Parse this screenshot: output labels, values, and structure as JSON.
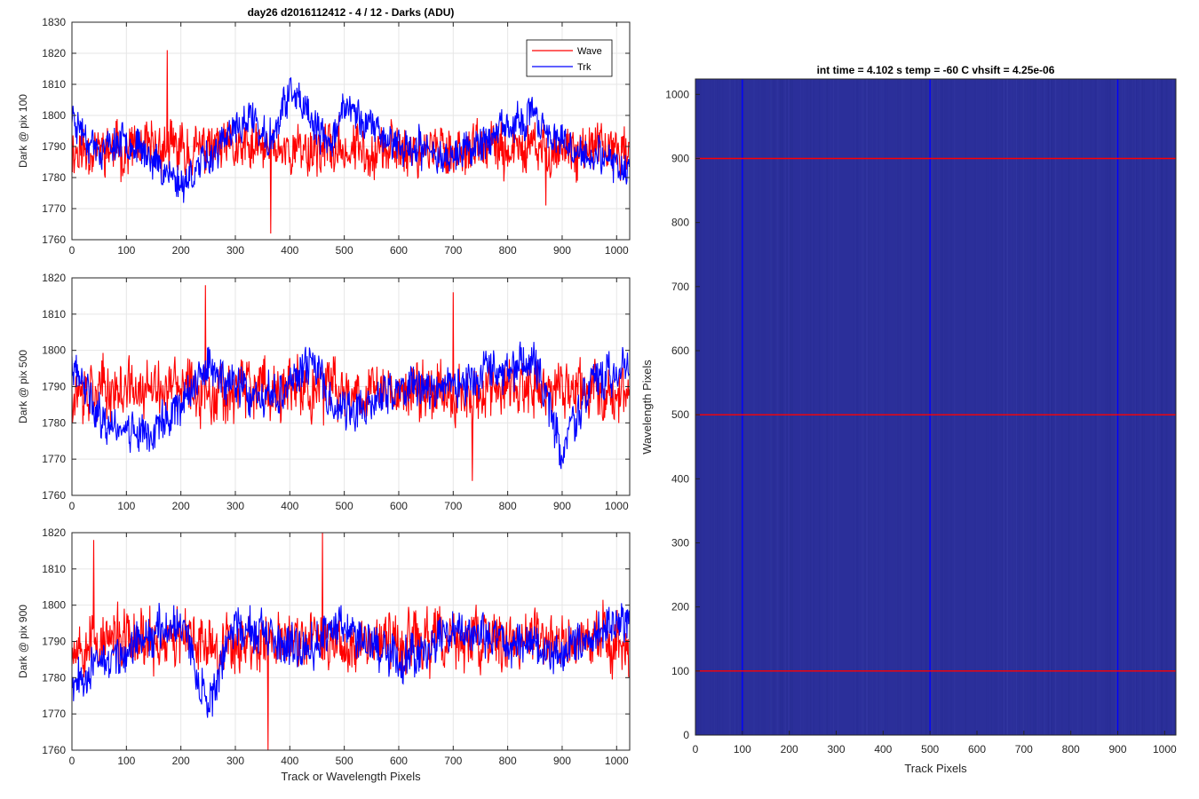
{
  "figure_title": "day26 d2016112412 - 4 / 12 - Darks (ADU)",
  "colors": {
    "wave": "#ff0000",
    "trk": "#0000ff",
    "image_bg": "#2b2f9a",
    "grid": "#e6e6e6"
  },
  "chart_data": [
    {
      "type": "line",
      "ylabel": "Dark @ pix 100",
      "xlim": [
        0,
        1024
      ],
      "ylim": [
        1760,
        1830
      ],
      "xticks": [
        0,
        100,
        200,
        300,
        400,
        500,
        600,
        700,
        800,
        900,
        1000
      ],
      "yticks": [
        1760,
        1770,
        1780,
        1790,
        1800,
        1810,
        1820,
        1830
      ],
      "grid": true,
      "legend": {
        "location": "top-right",
        "entries": [
          "Wave",
          "Trk"
        ]
      },
      "series": [
        {
          "name": "Wave",
          "mean": 1789,
          "amplitude": 7,
          "seed": 11,
          "spikes": [
            [
              175,
              1821
            ],
            [
              365,
              1762
            ],
            [
              870,
              1771
            ]
          ]
        },
        {
          "name": "Trk",
          "mean": 1792,
          "amplitude": 5,
          "seed": 23,
          "drift": [
            [
              0,
              1800
            ],
            [
              50,
              1788
            ],
            [
              100,
              1793
            ],
            [
              200,
              1778
            ],
            [
              330,
              1800
            ],
            [
              360,
              1790
            ],
            [
              400,
              1808
            ],
            [
              470,
              1790
            ],
            [
              500,
              1803
            ],
            [
              600,
              1790
            ],
            [
              700,
              1787
            ],
            [
              850,
              1800
            ],
            [
              900,
              1790
            ],
            [
              1024,
              1783
            ]
          ]
        }
      ]
    },
    {
      "type": "line",
      "ylabel": "Dark @ pix 500",
      "xlim": [
        0,
        1024
      ],
      "ylim": [
        1760,
        1820
      ],
      "xticks": [
        0,
        100,
        200,
        300,
        400,
        500,
        600,
        700,
        800,
        900,
        1000
      ],
      "yticks": [
        1760,
        1770,
        1780,
        1790,
        1800,
        1810,
        1820
      ],
      "grid": true,
      "series": [
        {
          "name": "Wave",
          "mean": 1789,
          "amplitude": 7,
          "seed": 37,
          "spikes": [
            [
              245,
              1818
            ],
            [
              700,
              1816
            ],
            [
              735,
              1764
            ]
          ]
        },
        {
          "name": "Trk",
          "mean": 1790,
          "amplitude": 5,
          "seed": 41,
          "drift": [
            [
              0,
              1795
            ],
            [
              60,
              1780
            ],
            [
              150,
              1777
            ],
            [
              250,
              1795
            ],
            [
              350,
              1785
            ],
            [
              450,
              1797
            ],
            [
              480,
              1785
            ],
            [
              520,
              1782
            ],
            [
              600,
              1790
            ],
            [
              700,
              1790
            ],
            [
              850,
              1797
            ],
            [
              900,
              1772
            ],
            [
              950,
              1790
            ],
            [
              1024,
              1797
            ]
          ]
        }
      ]
    },
    {
      "type": "line",
      "ylabel": "Dark @ pix 900",
      "xlabel": "Track or Wavelength Pixels",
      "xlim": [
        0,
        1024
      ],
      "ylim": [
        1760,
        1820
      ],
      "xticks": [
        0,
        100,
        200,
        300,
        400,
        500,
        600,
        700,
        800,
        900,
        1000
      ],
      "yticks": [
        1760,
        1770,
        1780,
        1790,
        1800,
        1810,
        1820
      ],
      "grid": true,
      "series": [
        {
          "name": "Wave",
          "mean": 1790,
          "amplitude": 7,
          "seed": 53,
          "spikes": [
            [
              460,
              1820
            ],
            [
              360,
              1760
            ],
            [
              40,
              1818
            ]
          ]
        },
        {
          "name": "Trk",
          "mean": 1790,
          "amplitude": 5,
          "seed": 67,
          "drift": [
            [
              0,
              1780
            ],
            [
              100,
              1787
            ],
            [
              200,
              1797
            ],
            [
              250,
              1772
            ],
            [
              300,
              1795
            ],
            [
              400,
              1787
            ],
            [
              500,
              1795
            ],
            [
              600,
              1785
            ],
            [
              700,
              1793
            ],
            [
              800,
              1790
            ],
            [
              900,
              1787
            ],
            [
              1024,
              1797
            ]
          ]
        }
      ]
    },
    {
      "type": "heatmap",
      "title": "int time = 4.102 s   temp = -60 C   vhsift = 4.25e-06",
      "xlabel": "Track Pixels",
      "ylabel": "Wavelength Pixels",
      "xlim": [
        0,
        1024
      ],
      "ylim": [
        0,
        1024
      ],
      "xticks": [
        0,
        100,
        200,
        300,
        400,
        500,
        600,
        700,
        800,
        900,
        1000
      ],
      "yticks": [
        0,
        100,
        200,
        300,
        400,
        500,
        600,
        700,
        800,
        900,
        1000
      ],
      "vertical_lines": [
        100,
        500,
        900
      ],
      "horizontal_lines": [
        100,
        500,
        900
      ]
    }
  ]
}
